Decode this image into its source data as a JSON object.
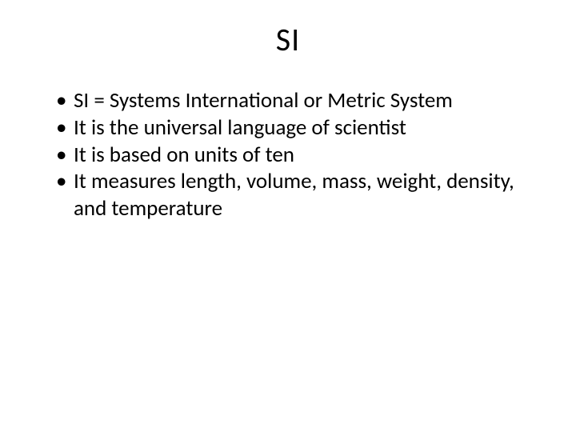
{
  "slide": {
    "title": "SI",
    "bullets": [
      "SI = Systems International or Metric System",
      "It is the universal language of scientist",
      "It is based on units of ten",
      "It measures length, volume, mass, weight, density, and temperature"
    ],
    "title_fontsize": 40,
    "body_fontsize": 27,
    "background_color": "#ffffff",
    "text_color": "#000000"
  }
}
